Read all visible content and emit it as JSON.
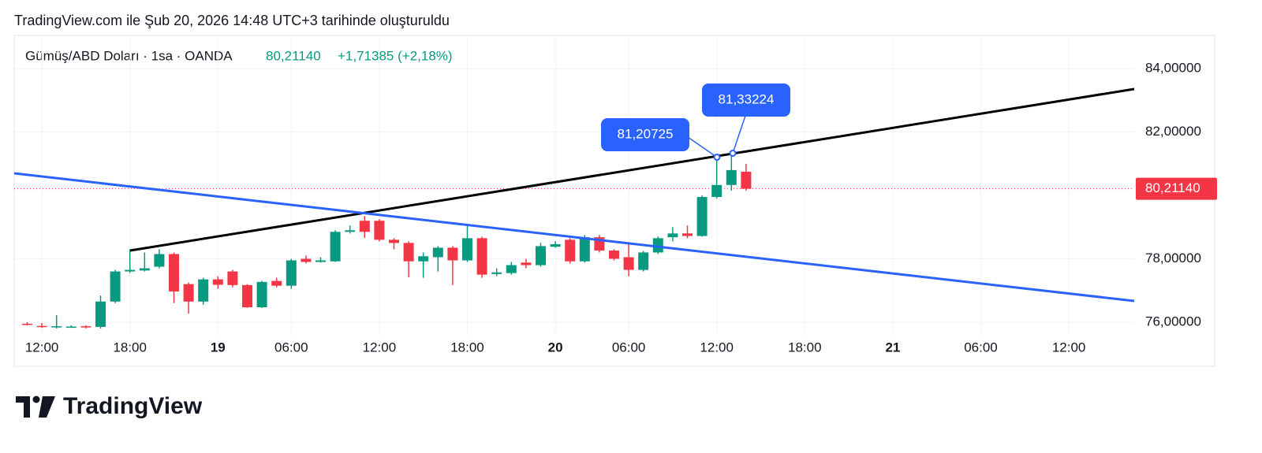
{
  "caption": "TradingView.com ile Şub 20, 2026 14:48 UTC+3 tarihinde oluşturuldu",
  "brand": "TradingView",
  "chart_data": {
    "type": "candlestick",
    "symbol": "Gümüş/ABD Doları · 1sa · OANDA",
    "last": "80,21140",
    "change": "+1,71385 (+2,18%)",
    "categories": [
      null,
      "12:00",
      null,
      null,
      null,
      null,
      null,
      "18:00",
      null,
      null,
      null,
      null,
      null,
      "19",
      null,
      null,
      null,
      null,
      "06:00",
      null,
      null,
      null,
      null,
      null,
      "12:00",
      null,
      null,
      null,
      null,
      null,
      "18:00",
      null,
      null,
      null,
      null,
      null,
      "20",
      null,
      null,
      null,
      null,
      "06:00",
      null,
      null,
      null,
      null,
      null,
      "12:00",
      null,
      null,
      null,
      null,
      null,
      "18:00",
      null,
      null,
      null,
      null,
      null,
      "21",
      null,
      null,
      null,
      null,
      null,
      "06:00",
      null,
      null,
      null,
      null,
      null,
      "12:00",
      null,
      null,
      null,
      null
    ],
    "open": [
      75.95,
      75.88,
      75.85,
      75.86,
      75.87,
      75.85,
      76.65,
      77.6,
      77.63,
      77.75,
      78.15,
      77.2,
      76.65,
      77.35,
      77.6,
      77.17,
      76.47,
      77.3,
      77.15,
      78.0,
      77.9,
      77.92,
      78.85,
      79.2,
      79.2,
      78.6,
      78.5,
      77.92,
      78.05,
      78.35,
      77.95,
      78.65,
      77.52,
      77.55,
      77.88,
      77.8,
      78.38,
      78.6,
      77.92,
      78.68,
      78.26,
      78.05,
      77.65,
      78.2,
      78.68,
      78.8,
      78.72,
      79.95,
      80.33,
      80.75,
      null,
      null,
      null,
      null,
      null,
      null,
      null,
      null,
      null,
      null,
      null,
      null,
      null,
      null,
      null,
      null,
      null,
      null,
      null,
      null,
      null,
      null,
      null,
      null,
      null,
      null
    ],
    "high": [
      76.0,
      75.97,
      76.22,
      75.9,
      75.9,
      76.84,
      77.65,
      78.3,
      78.2,
      78.3,
      78.2,
      77.25,
      77.4,
      77.45,
      77.65,
      77.2,
      77.3,
      77.4,
      78.0,
      78.1,
      78.05,
      78.9,
      79.05,
      79.35,
      79.25,
      78.65,
      78.55,
      78.2,
      78.4,
      78.4,
      79.06,
      78.7,
      77.7,
      77.9,
      78.0,
      78.5,
      78.55,
      78.65,
      78.75,
      78.75,
      78.3,
      78.5,
      78.25,
      78.7,
      79.0,
      79.05,
      80.0,
      81.20725,
      81.33224,
      81.0,
      null,
      null,
      null,
      null,
      null,
      null,
      null,
      null,
      null,
      null,
      null,
      null,
      null,
      null,
      null,
      null,
      null,
      null,
      null,
      null,
      null,
      null,
      null,
      null,
      null,
      null
    ],
    "low": [
      75.9,
      75.82,
      75.8,
      75.82,
      75.8,
      75.8,
      76.6,
      77.55,
      77.6,
      77.7,
      76.6,
      76.27,
      76.55,
      77.05,
      77.1,
      76.45,
      76.45,
      77.1,
      77.05,
      77.85,
      77.88,
      77.9,
      78.8,
      78.66,
      78.55,
      78.3,
      77.42,
      77.4,
      77.6,
      77.17,
      77.9,
      77.4,
      77.45,
      77.5,
      77.7,
      77.75,
      78.35,
      77.85,
      77.88,
      78.2,
      77.95,
      77.45,
      77.6,
      78.15,
      78.55,
      78.65,
      78.7,
      79.9,
      80.15,
      80.15,
      null,
      null,
      null,
      null,
      null,
      null,
      null,
      null,
      null,
      null,
      null,
      null,
      null,
      null,
      null,
      null,
      null,
      null,
      null,
      null,
      null,
      null,
      null,
      null,
      null,
      null
    ],
    "close": [
      75.93,
      75.85,
      75.87,
      75.86,
      75.84,
      76.65,
      77.6,
      77.65,
      77.7,
      78.15,
      76.97,
      76.65,
      77.35,
      77.18,
      77.17,
      76.47,
      77.27,
      77.15,
      77.95,
      77.9,
      77.95,
      78.85,
      78.9,
      78.85,
      78.6,
      78.5,
      77.92,
      78.08,
      78.35,
      77.95,
      78.65,
      77.5,
      77.57,
      77.8,
      77.8,
      78.4,
      78.46,
      77.92,
      78.68,
      78.26,
      78.0,
      77.65,
      78.2,
      78.65,
      78.8,
      78.72,
      79.95,
      80.33,
      80.8,
      80.2114,
      null,
      null,
      null,
      null,
      null,
      null,
      null,
      null,
      null,
      null,
      null,
      null,
      null,
      null,
      null,
      null,
      null,
      null,
      null,
      null,
      null,
      null,
      null,
      null,
      null,
      null
    ],
    "up_color": "#089981",
    "down_color": "#f23645",
    "ylim": [
      75.6,
      85.05
    ],
    "yticks": [
      {
        "value": 76,
        "label": "76,00000"
      },
      {
        "value": 78,
        "label": "78,00000"
      },
      {
        "value": 82,
        "label": "82,00000"
      },
      {
        "value": 84,
        "label": "84,00000"
      }
    ],
    "grid": true,
    "last_price": {
      "value": 80.2114,
      "label": "80,21140"
    },
    "annotations": [
      {
        "value": 81.20725,
        "label": "81,20725"
      },
      {
        "value": 81.33224,
        "label": "81,33224"
      }
    ]
  }
}
